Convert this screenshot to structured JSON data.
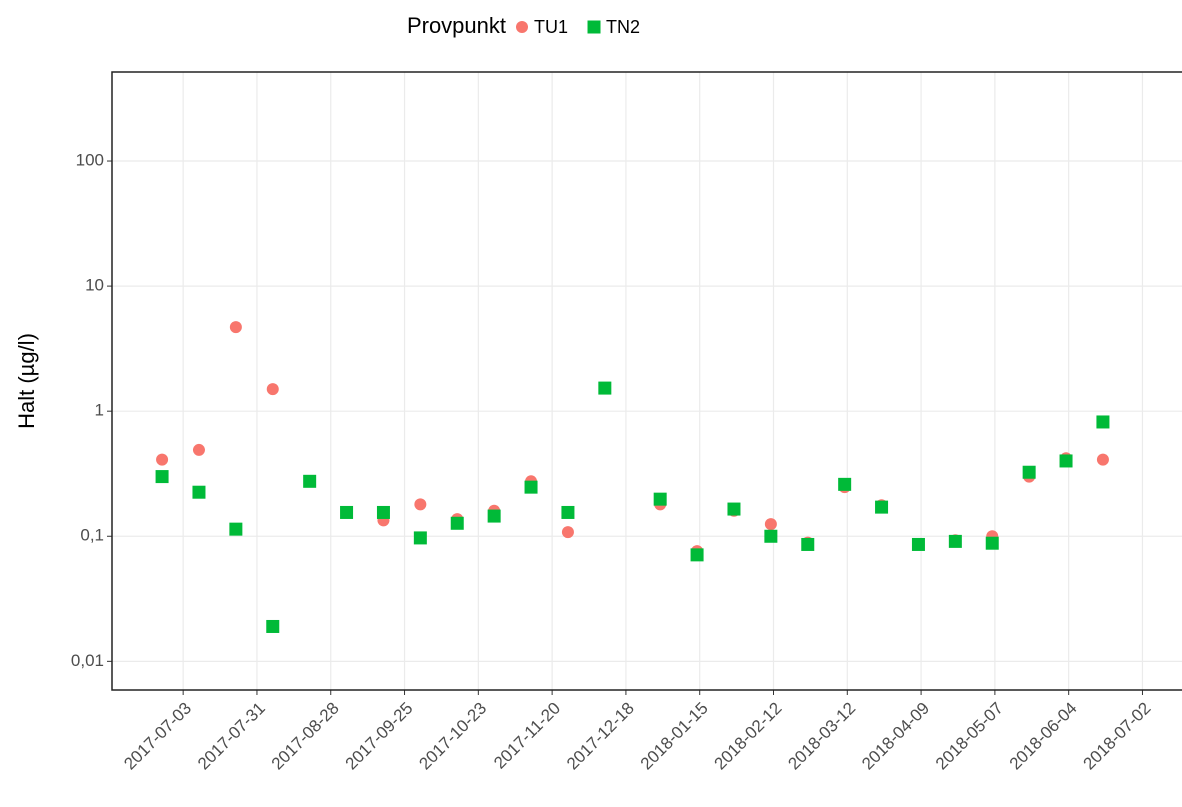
{
  "chart_data": {
    "type": "scatter",
    "y_label": "Halt (µg/l)",
    "legend_title": "Provpunkt",
    "legend_position": "top",
    "log_y": true,
    "grid": true,
    "x": [
      "2017-06-25",
      "2017-07-09",
      "2017-07-23",
      "2017-08-06",
      "2017-08-20",
      "2017-09-03",
      "2017-09-17",
      "2017-10-01",
      "2017-10-15",
      "2017-10-29",
      "2017-11-12",
      "2017-11-26",
      "2017-12-10",
      "2017-12-31",
      "2018-01-14",
      "2018-01-28",
      "2018-02-11",
      "2018-02-25",
      "2018-03-11",
      "2018-03-25",
      "2018-04-08",
      "2018-04-22",
      "2018-05-06",
      "2018-05-20",
      "2018-06-03",
      "2018-06-17"
    ],
    "series": [
      {
        "name": "TU1",
        "color": "#f8766d",
        "marker": "circle",
        "values": [
          0.41,
          0.49,
          4.7,
          1.5,
          null,
          null,
          0.134,
          0.18,
          0.137,
          0.16,
          0.275,
          0.108,
          1.53,
          0.18,
          0.076,
          0.16,
          0.125,
          0.089,
          0.247,
          0.177,
          0.086,
          0.093,
          0.1,
          0.3,
          0.42,
          0.41
        ]
      },
      {
        "name": "TN2",
        "color": "#00ba38",
        "marker": "square",
        "values": [
          0.3,
          0.225,
          0.114,
          0.019,
          0.275,
          0.155,
          0.155,
          0.097,
          0.127,
          0.145,
          0.247,
          0.155,
          1.53,
          0.198,
          0.071,
          0.165,
          0.1,
          0.086,
          0.26,
          0.171,
          0.086,
          0.091,
          0.088,
          0.325,
          0.4,
          0.82
        ]
      }
    ],
    "xlim": [
      "2017-06-06",
      "2018-07-17"
    ],
    "xticks": [
      "2017-07-03",
      "2017-07-31",
      "2017-08-28",
      "2017-09-25",
      "2017-10-23",
      "2017-11-20",
      "2017-12-18",
      "2018-01-15",
      "2018-02-12",
      "2018-03-12",
      "2018-04-09",
      "2018-05-07",
      "2018-06-04",
      "2018-07-02"
    ],
    "ylim": [
      0.0059,
      515
    ],
    "yticks": [
      {
        "value": 0.01,
        "label": "0,01"
      },
      {
        "value": 0.1,
        "label": "0,1"
      },
      1,
      10,
      100
    ]
  }
}
